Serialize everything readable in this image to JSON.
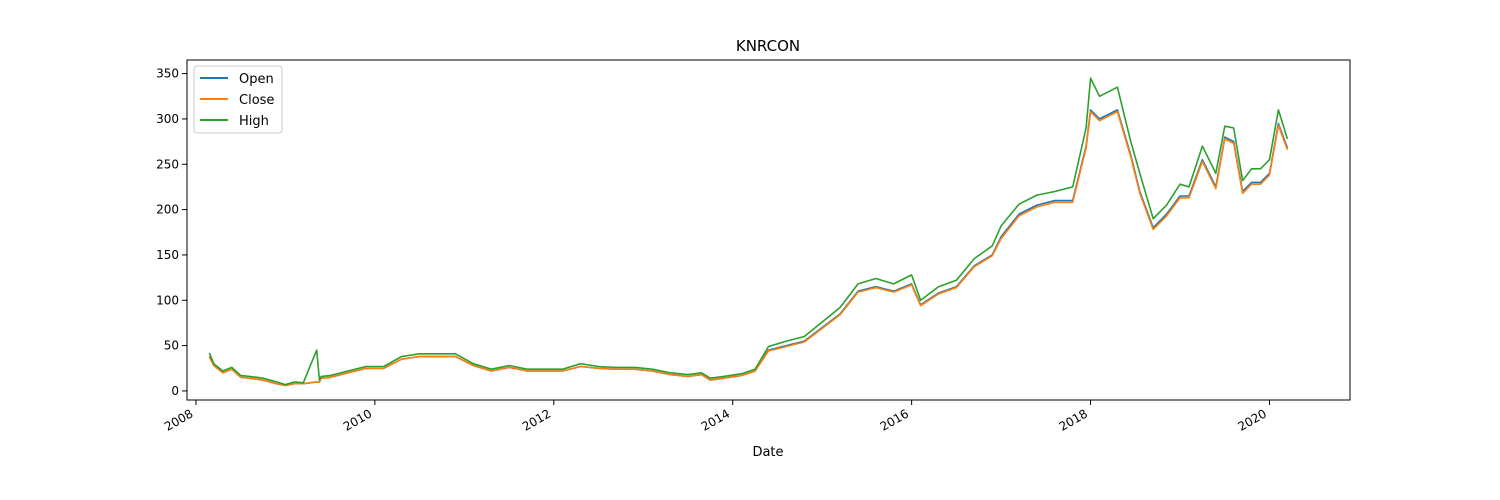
{
  "chart_data": {
    "type": "line",
    "title": "KNRCON",
    "xlabel": "Date",
    "ylabel": "",
    "xlim": [
      2007.9,
      2020.9
    ],
    "ylim": [
      -10,
      365
    ],
    "x_ticks": [
      2008,
      2010,
      2012,
      2014,
      2016,
      2018,
      2020
    ],
    "x_tick_labels": [
      "2008",
      "2010",
      "2012",
      "2014",
      "2016",
      "2018",
      "2020"
    ],
    "y_ticks": [
      0,
      50,
      100,
      150,
      200,
      250,
      300,
      350
    ],
    "y_tick_labels": [
      "0",
      "50",
      "100",
      "150",
      "200",
      "250",
      "300",
      "350"
    ],
    "grid": false,
    "legend_position": "top-left",
    "x": [
      2008.15,
      2008.2,
      2008.3,
      2008.4,
      2008.5,
      2008.6,
      2008.75,
      2008.9,
      2009.0,
      2009.1,
      2009.2,
      2009.35,
      2009.38,
      2009.4,
      2009.5,
      2009.7,
      2009.9,
      2010.1,
      2010.3,
      2010.5,
      2010.7,
      2010.9,
      2011.1,
      2011.3,
      2011.5,
      2011.7,
      2011.9,
      2012.1,
      2012.3,
      2012.5,
      2012.7,
      2012.9,
      2013.1,
      2013.3,
      2013.5,
      2013.65,
      2013.75,
      2013.9,
      2014.1,
      2014.25,
      2014.4,
      2014.6,
      2014.8,
      2015.0,
      2015.2,
      2015.4,
      2015.6,
      2015.8,
      2016.0,
      2016.1,
      2016.3,
      2016.5,
      2016.7,
      2016.9,
      2017.0,
      2017.2,
      2017.4,
      2017.6,
      2017.8,
      2017.95,
      2018.0,
      2018.1,
      2018.3,
      2018.45,
      2018.55,
      2018.7,
      2018.85,
      2019.0,
      2019.1,
      2019.25,
      2019.4,
      2019.5,
      2019.6,
      2019.7,
      2019.8,
      2019.9,
      2020.0,
      2020.1,
      2020.2
    ],
    "series": [
      {
        "name": "Open",
        "color": "#1f77b4",
        "values": [
          38,
          28,
          20,
          24,
          15,
          14,
          12,
          8,
          6,
          8,
          8,
          10,
          10,
          14,
          15,
          20,
          25,
          25,
          35,
          38,
          38,
          38,
          28,
          22,
          26,
          22,
          22,
          22,
          27,
          25,
          24,
          24,
          22,
          18,
          16,
          18,
          12,
          14,
          17,
          22,
          45,
          50,
          55,
          70,
          85,
          110,
          115,
          110,
          118,
          95,
          108,
          115,
          138,
          150,
          170,
          195,
          205,
          210,
          210,
          270,
          310,
          300,
          310,
          260,
          220,
          180,
          195,
          215,
          215,
          255,
          225,
          280,
          275,
          220,
          230,
          230,
          240,
          295,
          268
        ]
      },
      {
        "name": "Close",
        "color": "#ff7f0e",
        "values": [
          37,
          28,
          20,
          24,
          15,
          14,
          12,
          8,
          6,
          8,
          8,
          10,
          10,
          14,
          15,
          20,
          25,
          25,
          35,
          38,
          38,
          38,
          28,
          22,
          26,
          22,
          22,
          22,
          27,
          25,
          24,
          24,
          22,
          18,
          16,
          18,
          12,
          14,
          17,
          22,
          44,
          49,
          54,
          69,
          84,
          109,
          114,
          109,
          117,
          94,
          107,
          114,
          137,
          149,
          168,
          193,
          203,
          208,
          208,
          268,
          308,
          298,
          308,
          258,
          218,
          178,
          193,
          213,
          213,
          253,
          223,
          278,
          273,
          218,
          228,
          228,
          238,
          293,
          266
        ]
      },
      {
        "name": "High",
        "color": "#2ca02c",
        "values": [
          42,
          30,
          22,
          26,
          17,
          16,
          14,
          10,
          7,
          10,
          9,
          45,
          12,
          16,
          17,
          22,
          27,
          27,
          38,
          41,
          41,
          41,
          30,
          24,
          28,
          24,
          24,
          24,
          30,
          27,
          26,
          26,
          24,
          20,
          18,
          20,
          14,
          16,
          19,
          24,
          49,
          55,
          60,
          76,
          92,
          118,
          124,
          118,
          128,
          100,
          115,
          122,
          146,
          160,
          182,
          206,
          216,
          220,
          225,
          290,
          345,
          325,
          335,
          275,
          240,
          190,
          205,
          228,
          225,
          270,
          240,
          292,
          290,
          232,
          245,
          245,
          255,
          310,
          278
        ]
      }
    ]
  }
}
